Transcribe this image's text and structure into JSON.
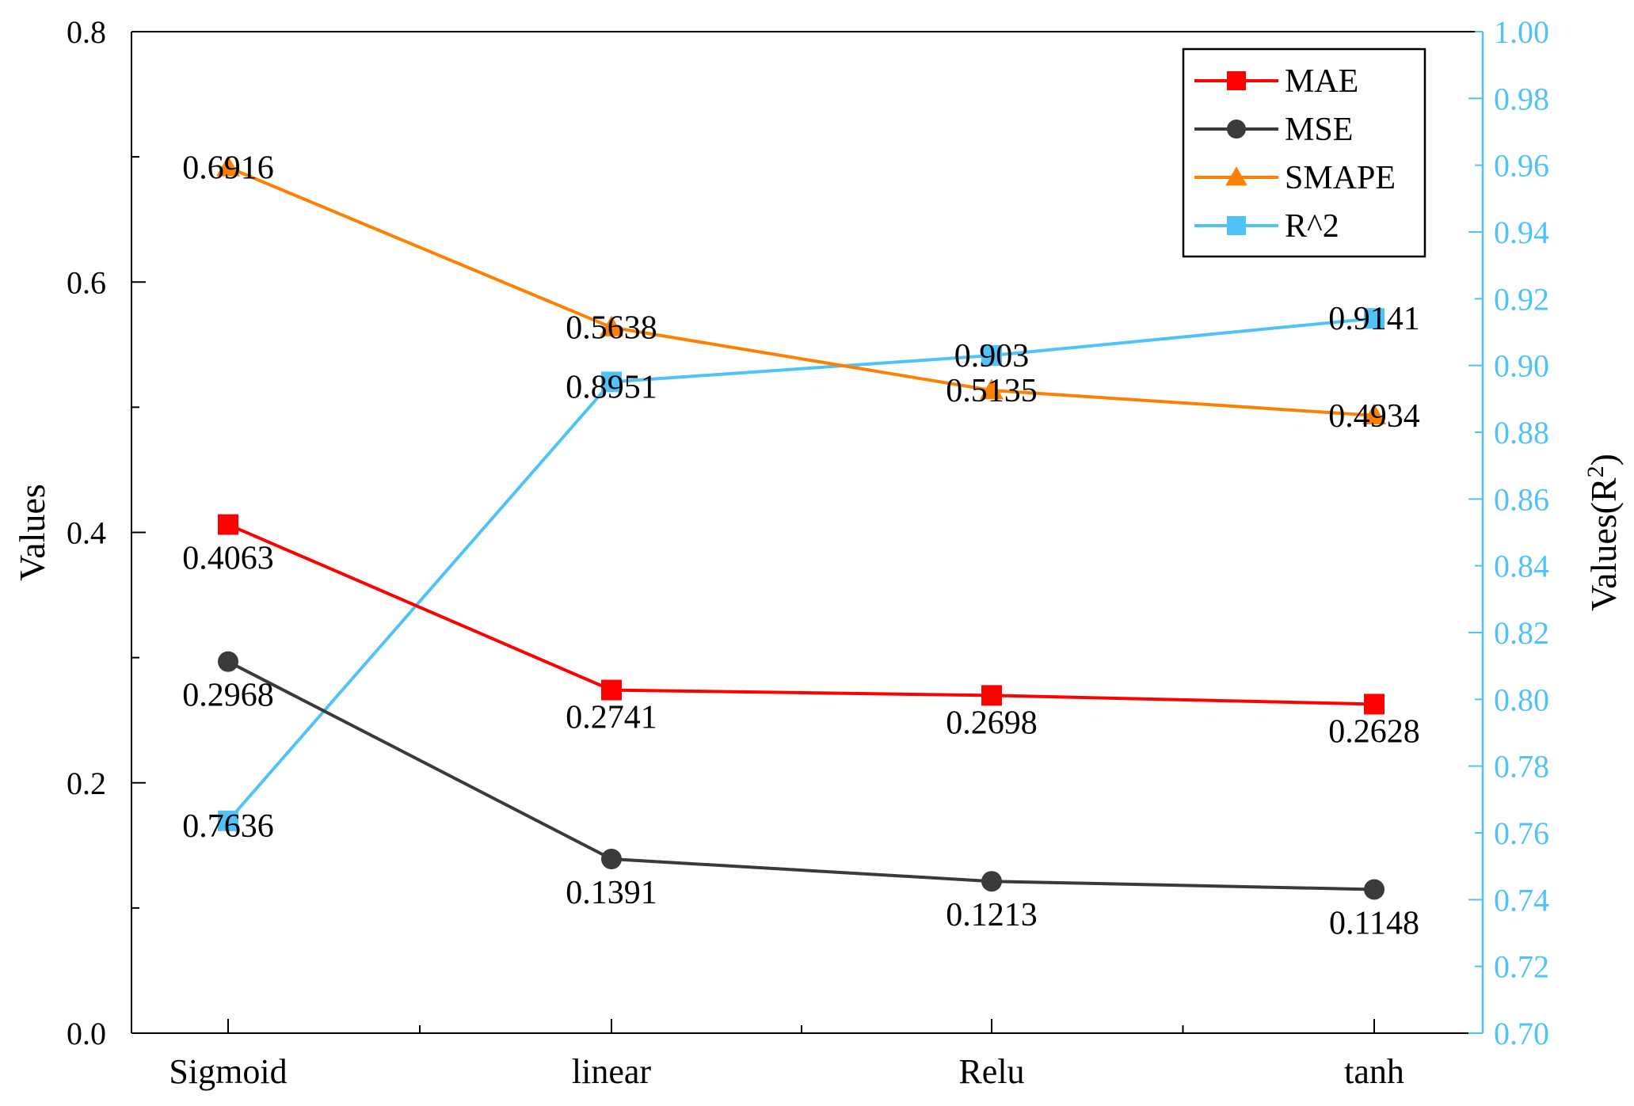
{
  "chart_data": {
    "type": "line",
    "categories": [
      "Sigmoid",
      "linear",
      "Relu",
      "tanh"
    ],
    "ylabel": "Values",
    "y2label_base": "Values(R",
    "y2label_sup": "2",
    "y2label_close": ")",
    "ylim": [
      0,
      0.8
    ],
    "y2lim": [
      0.7,
      1.0
    ],
    "yticks": [
      "0.0",
      "0.2",
      "0.4",
      "0.6",
      "0.8"
    ],
    "y2ticks": [
      "0.70",
      "0.72",
      "0.74",
      "0.76",
      "0.78",
      "0.80",
      "0.82",
      "0.84",
      "0.86",
      "0.88",
      "0.90",
      "0.92",
      "0.94",
      "0.96",
      "0.98",
      "1.00"
    ],
    "legend_position": "top-right",
    "grid": false,
    "series": [
      {
        "name": "MAE",
        "axis": "left",
        "marker": "square",
        "color": "#ff0000",
        "values": [
          0.4063,
          0.2741,
          0.2698,
          0.2628
        ],
        "labels": [
          "0.4063",
          "0.2741",
          "0.2698",
          "0.2628"
        ]
      },
      {
        "name": "MSE",
        "axis": "left",
        "marker": "circle",
        "color": "#3a3a3a",
        "values": [
          0.2968,
          0.1391,
          0.1213,
          0.1148
        ],
        "labels": [
          "0.2968",
          "0.1391",
          "0.1213",
          "0.1148"
        ]
      },
      {
        "name": "SMAPE",
        "axis": "left",
        "marker": "triangle",
        "color": "#ff8000",
        "values": [
          0.6916,
          0.5638,
          0.5135,
          0.4934
        ],
        "labels": [
          "0.6916",
          "0.5638",
          "0.5135",
          "0.4934"
        ]
      },
      {
        "name": "R^2",
        "axis": "right",
        "marker": "square",
        "color": "#4fc3f7",
        "values": [
          0.7636,
          0.8951,
          0.903,
          0.9141
        ],
        "labels": [
          "0.7636",
          "0.8951",
          "0.903",
          "0.9141"
        ]
      }
    ]
  }
}
